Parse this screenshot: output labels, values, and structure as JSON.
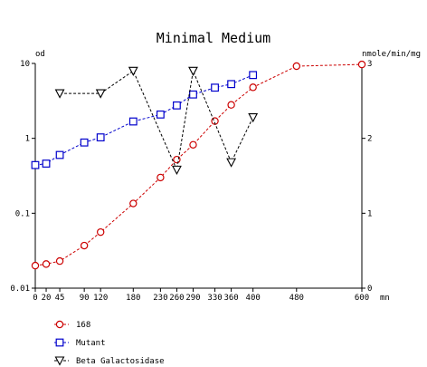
{
  "chart_data": {
    "type": "line",
    "title": "Minimal Medium",
    "xlabel": "mn",
    "ylabel_left": "od",
    "ylabel_right": "nmole/min/mg",
    "xlim": [
      0,
      600
    ],
    "x_ticks": [
      0,
      20,
      45,
      90,
      120,
      180,
      230,
      260,
      290,
      330,
      360,
      400,
      480,
      600
    ],
    "y_left": {
      "scale": "log",
      "lim": [
        0.01,
        10
      ],
      "ticks": [
        0.01,
        0.1,
        1,
        10
      ],
      "tick_labels": [
        "0.01",
        "0.1",
        "1",
        "10"
      ]
    },
    "y_right": {
      "scale": "linear",
      "lim": [
        0,
        3
      ],
      "ticks": [
        0,
        1,
        2,
        3
      ],
      "tick_labels": [
        "0",
        "1",
        "2",
        "3"
      ]
    },
    "grid": false,
    "legend_position": "bottom-left",
    "series": [
      {
        "name": "168",
        "axis": "left",
        "marker": "circle",
        "color": "#cc0000",
        "x": [
          0,
          20,
          45,
          90,
          120,
          180,
          230,
          260,
          290,
          330,
          360,
          400,
          480,
          600
        ],
        "y": [
          0.02,
          0.021,
          0.023,
          0.037,
          0.056,
          0.135,
          0.3,
          0.52,
          0.82,
          1.7,
          2.8,
          4.8,
          9.2,
          9.7
        ]
      },
      {
        "name": "Mutant",
        "axis": "left",
        "marker": "square",
        "color": "#0000cc",
        "x": [
          0,
          20,
          45,
          90,
          120,
          180,
          230,
          260,
          290,
          330,
          360,
          400
        ],
        "y": [
          0.44,
          0.46,
          0.6,
          0.88,
          1.03,
          1.68,
          2.08,
          2.75,
          3.85,
          4.75,
          5.3,
          7.0
        ]
      },
      {
        "name": "Beta Galactosidase",
        "axis": "right",
        "marker": "triangle-down",
        "color": "#000000",
        "x": [
          45,
          120,
          180,
          260,
          290,
          360,
          400
        ],
        "y": [
          2.6,
          2.6,
          2.9,
          1.58,
          2.9,
          1.68,
          2.28
        ]
      }
    ]
  }
}
